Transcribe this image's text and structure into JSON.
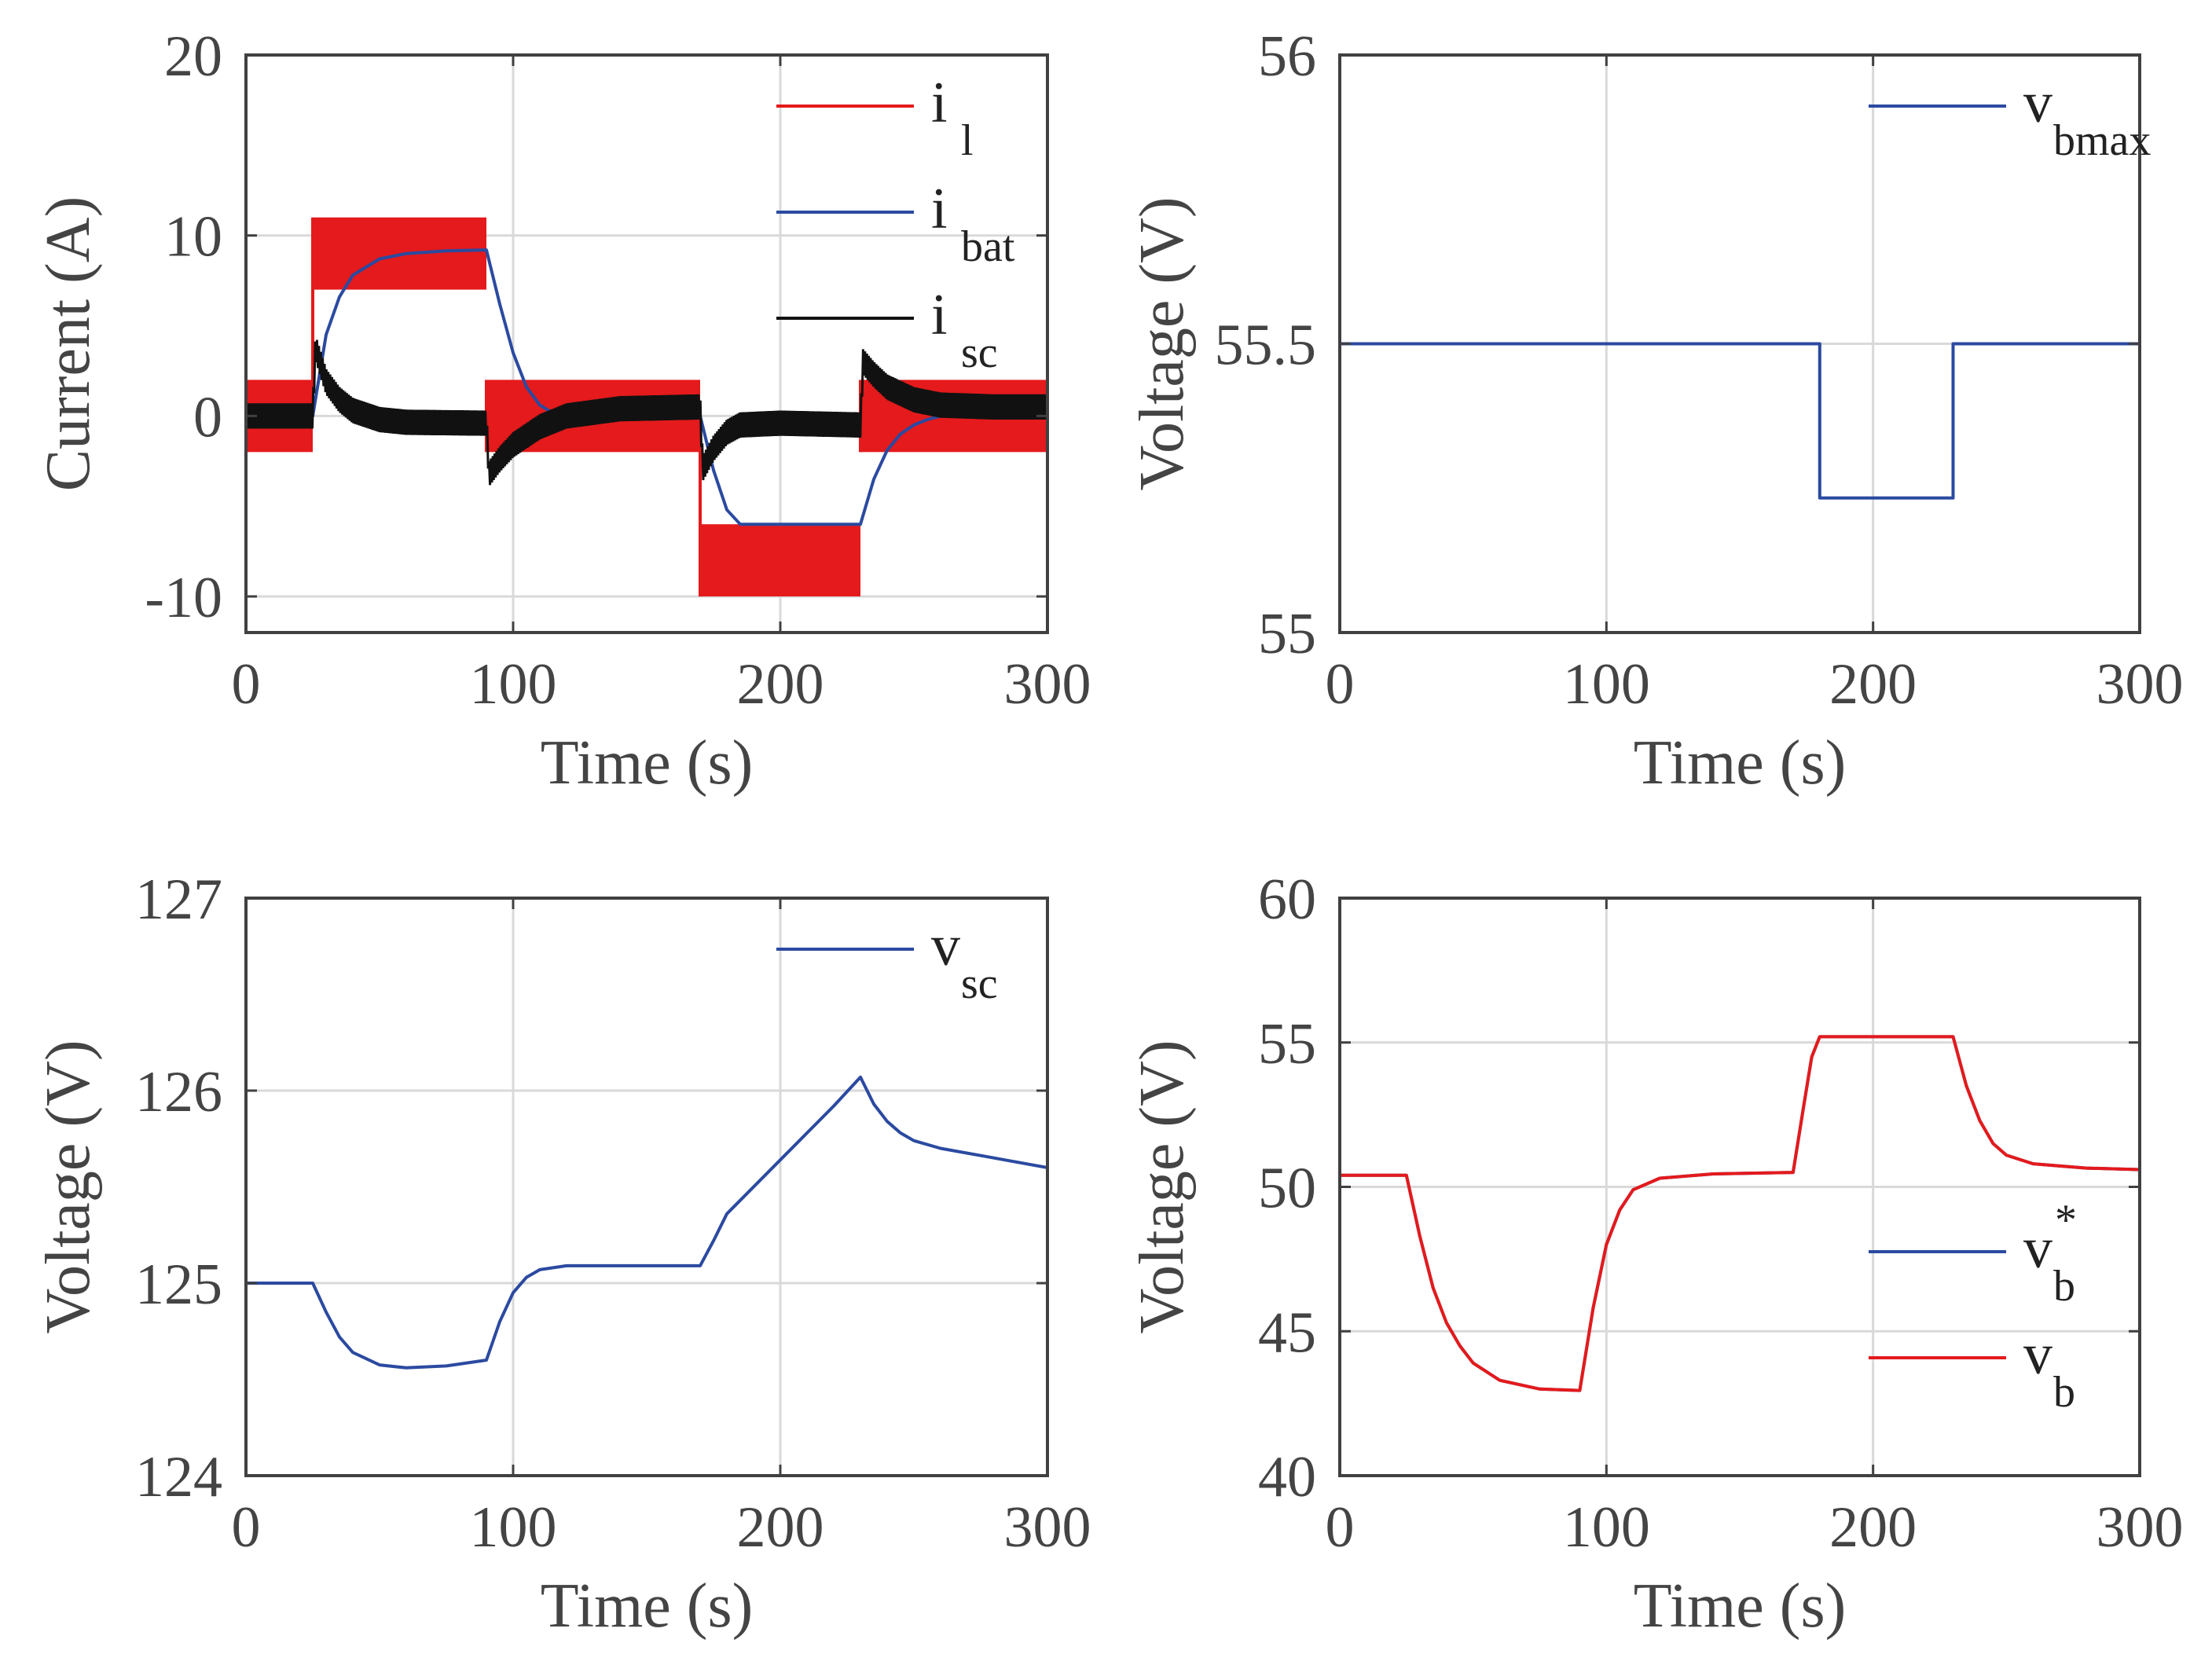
{
  "colors": {
    "red": "#e41a1c",
    "blue": "#2b4aa0",
    "black": "#111111",
    "grid": "#d9d9d9",
    "axis": "#404040"
  },
  "chart_data": [
    {
      "id": "current",
      "type": "line",
      "title": "",
      "xlabel": "Time (s)",
      "ylabel": "Current (A)",
      "xlim": [
        0,
        300
      ],
      "ylim": [
        -12,
        20
      ],
      "xticks": [
        0,
        100,
        200,
        300
      ],
      "xtick_labels": [
        "0",
        "100",
        "200",
        "300"
      ],
      "yticks": [
        -10,
        0,
        10,
        20
      ],
      "ytick_labels": [
        "-10",
        "0",
        "10",
        "20"
      ],
      "legend_position": "top-right",
      "series": [
        {
          "name": "i_l",
          "legend_main": "i",
          "legend_sub": "l",
          "color": "#e41a1c",
          "style": "band",
          "segments": [
            [
              0,
              25,
              -2,
              2
            ],
            [
              25,
              90,
              7,
              11
            ],
            [
              90,
              170,
              -2,
              2
            ],
            [
              170,
              230,
              -10,
              -6
            ],
            [
              230,
              300,
              -2,
              2
            ]
          ]
        },
        {
          "name": "i_bat",
          "legend_main": "i",
          "legend_sub": "bat",
          "color": "#2b4aa0",
          "style": "line",
          "points": [
            [
              0,
              0
            ],
            [
              25,
              0
            ],
            [
              30,
              4.5
            ],
            [
              35,
              6.6
            ],
            [
              40,
              7.8
            ],
            [
              50,
              8.7
            ],
            [
              60,
              9.0
            ],
            [
              75,
              9.15
            ],
            [
              90,
              9.2
            ],
            [
              95,
              6.2
            ],
            [
              100,
              3.5
            ],
            [
              105,
              1.6
            ],
            [
              110,
              0.6
            ],
            [
              115,
              0.15
            ],
            [
              120,
              0
            ],
            [
              170,
              0
            ],
            [
              175,
              -3
            ],
            [
              180,
              -5.2
            ],
            [
              185,
              -6
            ],
            [
              230,
              -6
            ],
            [
              235,
              -3.5
            ],
            [
              240,
              -1.9
            ],
            [
              245,
              -1.0
            ],
            [
              250,
              -0.5
            ],
            [
              255,
              -0.2
            ],
            [
              260,
              0
            ],
            [
              300,
              0
            ]
          ]
        },
        {
          "name": "i_sc",
          "legend_main": "i",
          "legend_sub": "sc",
          "color": "#111111",
          "style": "ripple",
          "points": [
            [
              0,
              0
            ],
            [
              25,
              0
            ],
            [
              26,
              3.8
            ],
            [
              30,
              1.9
            ],
            [
              35,
              0.9
            ],
            [
              40,
              0.3
            ],
            [
              50,
              -0.2
            ],
            [
              60,
              -0.35
            ],
            [
              90,
              -0.4
            ],
            [
              91,
              -3.2
            ],
            [
              95,
              -2.4
            ],
            [
              100,
              -1.6
            ],
            [
              110,
              -0.6
            ],
            [
              120,
              0
            ],
            [
              140,
              0.4
            ],
            [
              170,
              0.5
            ],
            [
              171,
              -2.9
            ],
            [
              175,
              -1.8
            ],
            [
              180,
              -0.9
            ],
            [
              185,
              -0.5
            ],
            [
              200,
              -0.4
            ],
            [
              230,
              -0.5
            ],
            [
              231,
              3.0
            ],
            [
              235,
              2.3
            ],
            [
              240,
              1.6
            ],
            [
              250,
              0.9
            ],
            [
              260,
              0.6
            ],
            [
              280,
              0.5
            ],
            [
              300,
              0.5
            ]
          ],
          "ripple_amplitude": 0.7
        }
      ]
    },
    {
      "id": "vbmax",
      "type": "line",
      "title": "",
      "xlabel": "Time (s)",
      "ylabel": "Voltage (V)",
      "xlim": [
        0,
        300
      ],
      "ylim": [
        55,
        56
      ],
      "xticks": [
        0,
        100,
        200,
        300
      ],
      "xtick_labels": [
        "0",
        "100",
        "200",
        "300"
      ],
      "yticks": [
        55,
        55.5,
        56
      ],
      "ytick_labels": [
        "55",
        "55.5",
        "56"
      ],
      "legend_position": "top-right",
      "series": [
        {
          "name": "v_bmax",
          "legend_main": "v",
          "legend_sub": "bmax",
          "color": "#2b4aa0",
          "style": "line",
          "points": [
            [
              0,
              55.5
            ],
            [
              180,
              55.5
            ],
            [
              180,
              55.233
            ],
            [
              230,
              55.233
            ],
            [
              230,
              55.5
            ],
            [
              300,
              55.5
            ]
          ]
        }
      ]
    },
    {
      "id": "vsc",
      "type": "line",
      "title": "",
      "xlabel": "Time (s)",
      "ylabel": "Voltage (V)",
      "xlim": [
        0,
        300
      ],
      "ylim": [
        124,
        127
      ],
      "xticks": [
        0,
        100,
        200,
        300
      ],
      "xtick_labels": [
        "0",
        "100",
        "200",
        "300"
      ],
      "yticks": [
        124,
        125,
        126,
        127
      ],
      "ytick_labels": [
        "124",
        "125",
        "126",
        "127"
      ],
      "legend_position": "top-right",
      "series": [
        {
          "name": "v_sc",
          "legend_main": "v",
          "legend_sub": "sc",
          "color": "#2b4aa0",
          "style": "line",
          "points": [
            [
              0,
              125
            ],
            [
              25,
              125
            ],
            [
              30,
              124.85
            ],
            [
              35,
              124.72
            ],
            [
              40,
              124.64
            ],
            [
              50,
              124.575
            ],
            [
              60,
              124.56
            ],
            [
              75,
              124.57
            ],
            [
              90,
              124.6
            ],
            [
              95,
              124.8
            ],
            [
              100,
              124.95
            ],
            [
              105,
              125.03
            ],
            [
              110,
              125.07
            ],
            [
              120,
              125.09
            ],
            [
              170,
              125.09
            ],
            [
              175,
              125.22
            ],
            [
              180,
              125.36
            ],
            [
              190,
              125.5
            ],
            [
              200,
              125.64
            ],
            [
              210,
              125.78
            ],
            [
              220,
              125.92
            ],
            [
              230,
              126.07
            ],
            [
              235,
              125.93
            ],
            [
              240,
              125.84
            ],
            [
              245,
              125.78
            ],
            [
              250,
              125.74
            ],
            [
              260,
              125.7
            ],
            [
              280,
              125.65
            ],
            [
              300,
              125.6
            ]
          ]
        }
      ]
    },
    {
      "id": "vb",
      "type": "line",
      "title": "",
      "xlabel": "Time (s)",
      "ylabel": "Voltage (V)",
      "xlim": [
        0,
        300
      ],
      "ylim": [
        40,
        60
      ],
      "xticks": [
        0,
        100,
        200,
        300
      ],
      "xtick_labels": [
        "0",
        "100",
        "200",
        "300"
      ],
      "yticks": [
        40,
        45,
        50,
        55,
        60
      ],
      "ytick_labels": [
        "40",
        "45",
        "50",
        "55",
        "60"
      ],
      "legend_position": "bottom-right",
      "series": [
        {
          "name": "v_b*",
          "legend_main": "v",
          "legend_sub": "b",
          "legend_sup": "*",
          "color": "#2b4aa0",
          "style": "line",
          "points": [
            [
              0,
              50.4
            ],
            [
              25,
              50.4
            ],
            [
              30,
              48.3
            ],
            [
              35,
              46.5
            ],
            [
              40,
              45.3
            ],
            [
              45,
              44.5
            ],
            [
              50,
              43.9
            ],
            [
              60,
              43.3
            ],
            [
              75,
              43.0
            ],
            [
              90,
              42.95
            ],
            [
              95,
              45.8
            ],
            [
              100,
              48.0
            ],
            [
              105,
              49.2
            ],
            [
              110,
              49.9
            ],
            [
              120,
              50.3
            ],
            [
              140,
              50.45
            ],
            [
              170,
              50.5
            ],
            [
              174,
              52.8
            ],
            [
              177,
              54.5
            ],
            [
              180,
              55.2
            ],
            [
              230,
              55.2
            ],
            [
              235,
              53.5
            ],
            [
              240,
              52.3
            ],
            [
              245,
              51.5
            ],
            [
              250,
              51.1
            ],
            [
              260,
              50.8
            ],
            [
              280,
              50.65
            ],
            [
              300,
              50.6
            ]
          ]
        },
        {
          "name": "v_b",
          "legend_main": "v",
          "legend_sub": "b",
          "color": "#e41a1c",
          "style": "line",
          "points": [
            [
              0,
              50.4
            ],
            [
              25,
              50.4
            ],
            [
              30,
              48.3
            ],
            [
              35,
              46.5
            ],
            [
              40,
              45.3
            ],
            [
              45,
              44.5
            ],
            [
              50,
              43.9
            ],
            [
              60,
              43.3
            ],
            [
              75,
              43.0
            ],
            [
              90,
              42.95
            ],
            [
              95,
              45.8
            ],
            [
              100,
              48.0
            ],
            [
              105,
              49.2
            ],
            [
              110,
              49.9
            ],
            [
              120,
              50.3
            ],
            [
              140,
              50.45
            ],
            [
              170,
              50.5
            ],
            [
              174,
              52.8
            ],
            [
              177,
              54.5
            ],
            [
              180,
              55.2
            ],
            [
              230,
              55.2
            ],
            [
              235,
              53.5
            ],
            [
              240,
              52.3
            ],
            [
              245,
              51.5
            ],
            [
              250,
              51.1
            ],
            [
              260,
              50.8
            ],
            [
              280,
              50.65
            ],
            [
              300,
              50.6
            ]
          ]
        }
      ]
    }
  ]
}
